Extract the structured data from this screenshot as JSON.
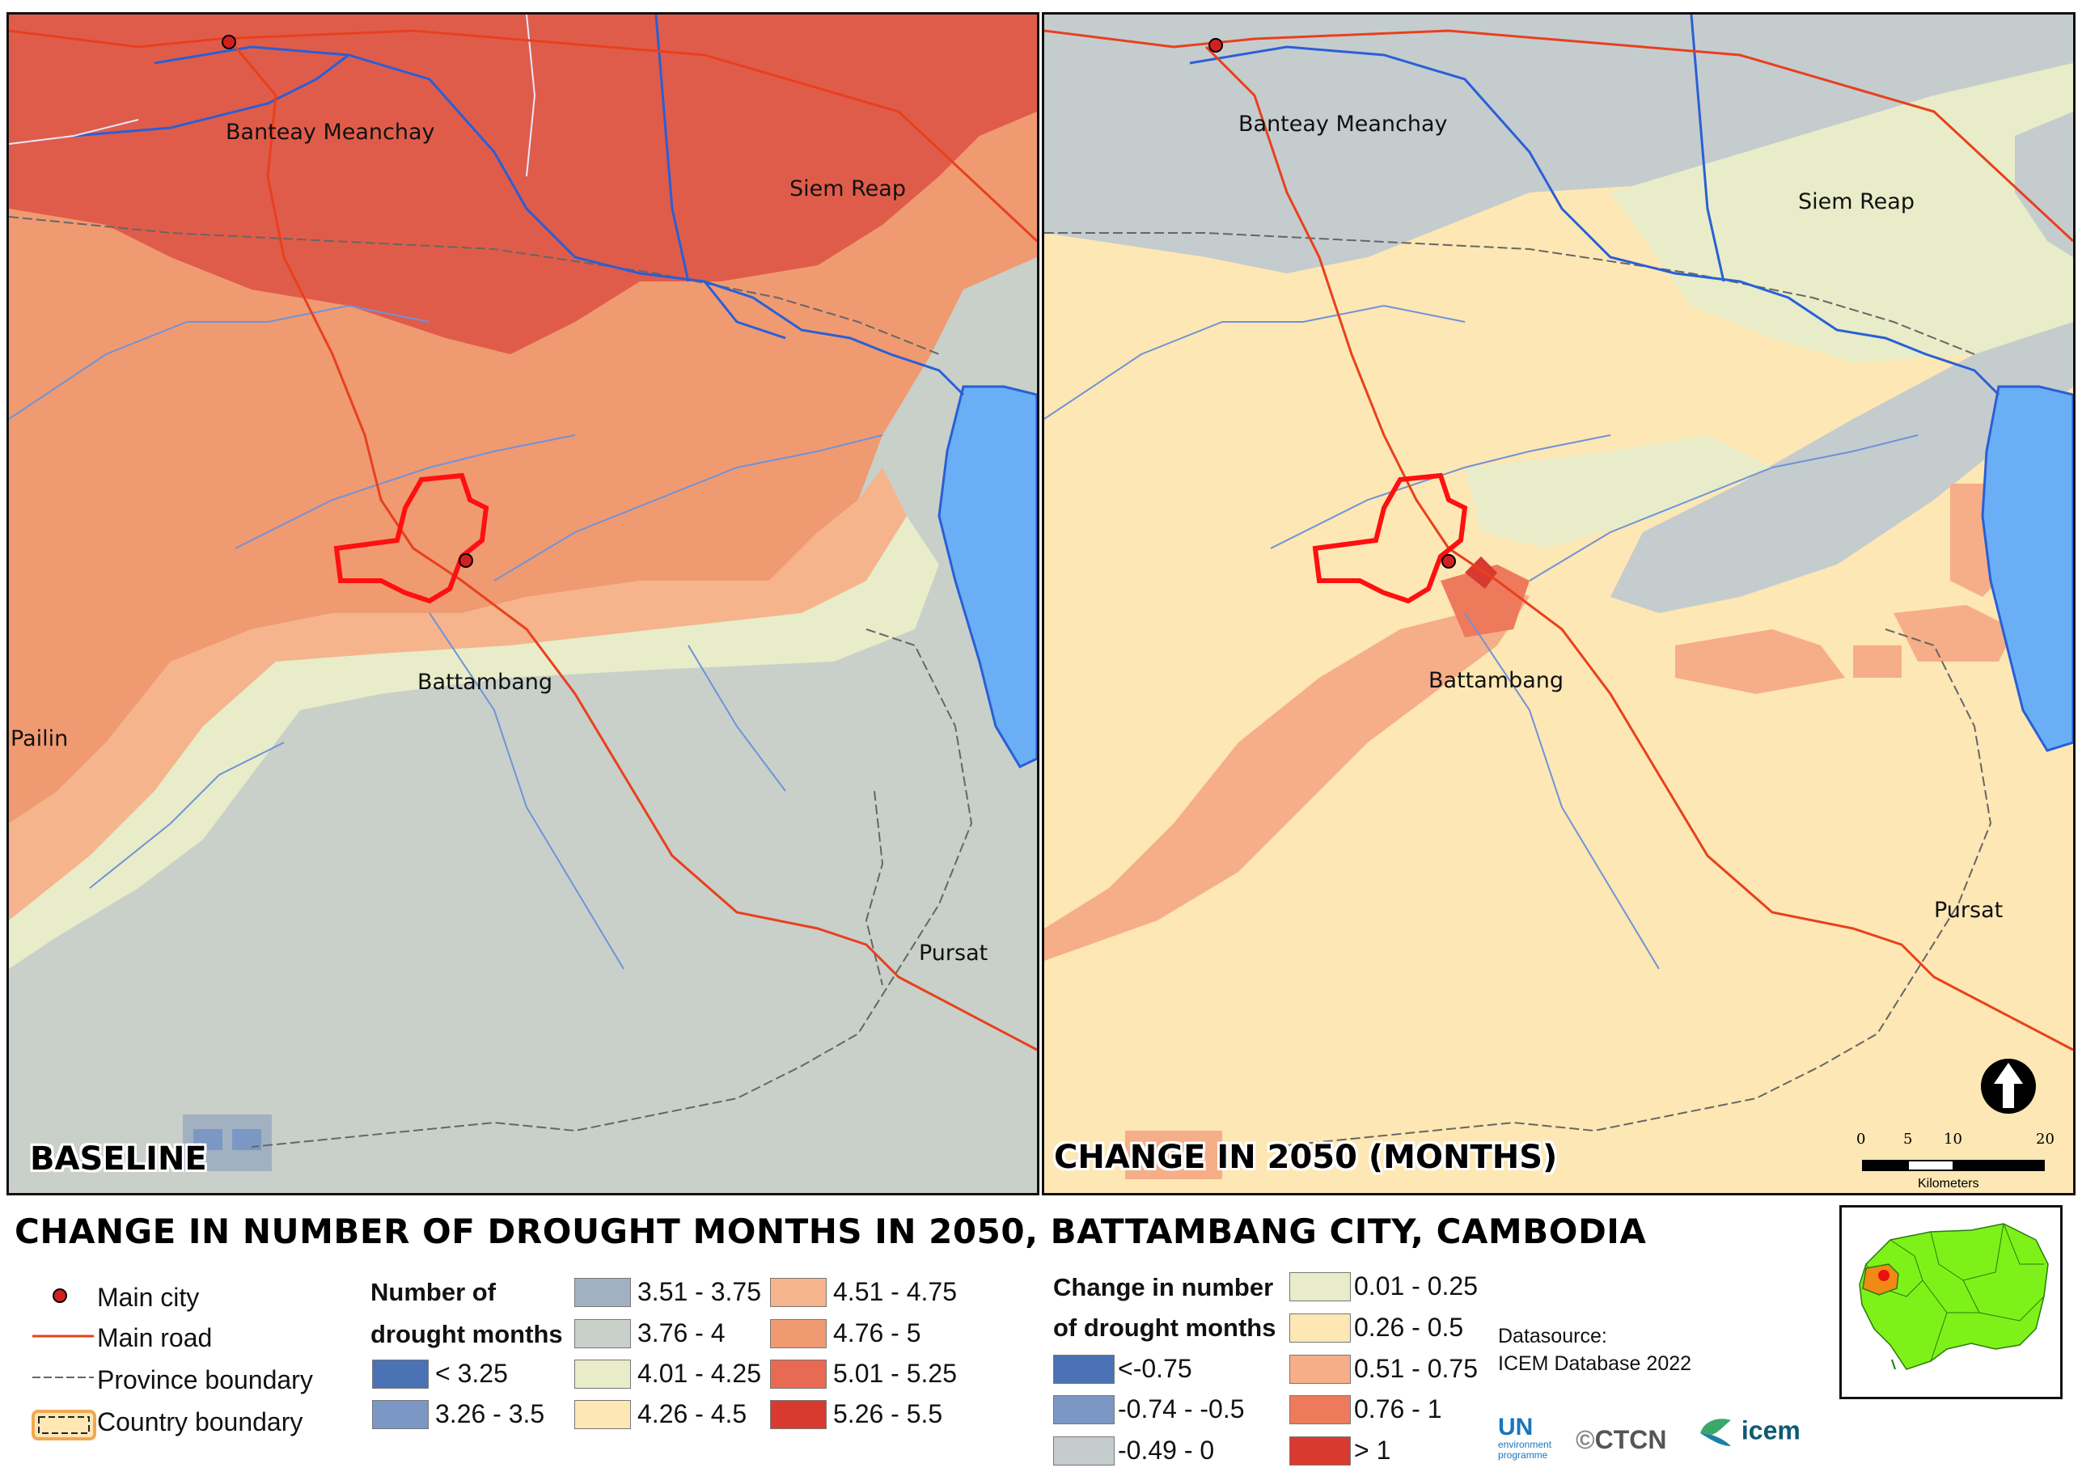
{
  "title": "CHANGE IN NUMBER OF DROUGHT MONTHS IN 2050, BATTAMBANG CITY, CAMBODIA",
  "panels": {
    "left": {
      "title": "BASELINE"
    },
    "right": {
      "title": "CHANGE IN 2050 (MONTHS)"
    }
  },
  "place_labels": {
    "banteay_meanchay": "Banteay Meanchay",
    "siem_reap": "Siem Reap",
    "battambang": "Battambang",
    "pailin": "Pailin",
    "pursat": "Pursat"
  },
  "scale_bar": {
    "ticks": [
      "0",
      "5",
      "10",
      "20"
    ],
    "unit": "Kilometers"
  },
  "legend": {
    "symbols": [
      {
        "label": "Main city",
        "icon": "city-dot-icon"
      },
      {
        "label": "Main road",
        "icon": "road-line-icon"
      },
      {
        "label": "Province boundary",
        "icon": "dashed-line-icon"
      },
      {
        "label": "Country boundary",
        "icon": "boundary-box-icon"
      }
    ],
    "baseline": {
      "heading_line1": "Number of",
      "heading_line2": "drought months",
      "classes": [
        {
          "label": "<  3.25",
          "color": "#4a72b5"
        },
        {
          "label": "3.26 - 3.5",
          "color": "#7b98c4"
        },
        {
          "label": "3.51 - 3.75",
          "color": "#a2b1c2"
        },
        {
          "label": "3.76 - 4",
          "color": "#c8d0c9"
        },
        {
          "label": "4.01 - 4.25",
          "color": "#e8ecc8"
        },
        {
          "label": "4.26 - 4.5",
          "color": "#fde7b4"
        },
        {
          "label": "4.51 - 4.75",
          "color": "#f6b48c"
        },
        {
          "label": "4.76 - 5",
          "color": "#f09a72"
        },
        {
          "label": "5.01 - 5.25",
          "color": "#e86a52"
        },
        {
          "label": "5.26 - 5.5",
          "color": "#d83a30"
        }
      ]
    },
    "change": {
      "heading_line1": "Change in number",
      "heading_line2": "of drought months",
      "classes": [
        {
          "label": "<-0.75",
          "color": "#4a72b5"
        },
        {
          "label": "-0.74 - -0.5",
          "color": "#7b98c4"
        },
        {
          "label": "-0.49 - 0",
          "color": "#c5ccce"
        },
        {
          "label": "0.01 - 0.25",
          "color": "#e8ecc8"
        },
        {
          "label": "0.26 - 0.5",
          "color": "#fde7b4"
        },
        {
          "label": "0.51 - 0.75",
          "color": "#f6ae88"
        },
        {
          "label": "0.76 - 1",
          "color": "#ee7a5c"
        },
        {
          "label": "> 1",
          "color": "#d83a30"
        }
      ]
    }
  },
  "datasource": {
    "line1": "Datasource:",
    "line2": "ICEM Database 2022"
  },
  "logos": {
    "un": "UN",
    "un_sub1": "environment",
    "un_sub2": "programme",
    "ctcn": "CTCN",
    "icem": "icem"
  },
  "colors": {
    "lake": "#6aaef5",
    "river": "#2a5fd6",
    "road": "#e8401e",
    "outline": "#ff1010"
  }
}
